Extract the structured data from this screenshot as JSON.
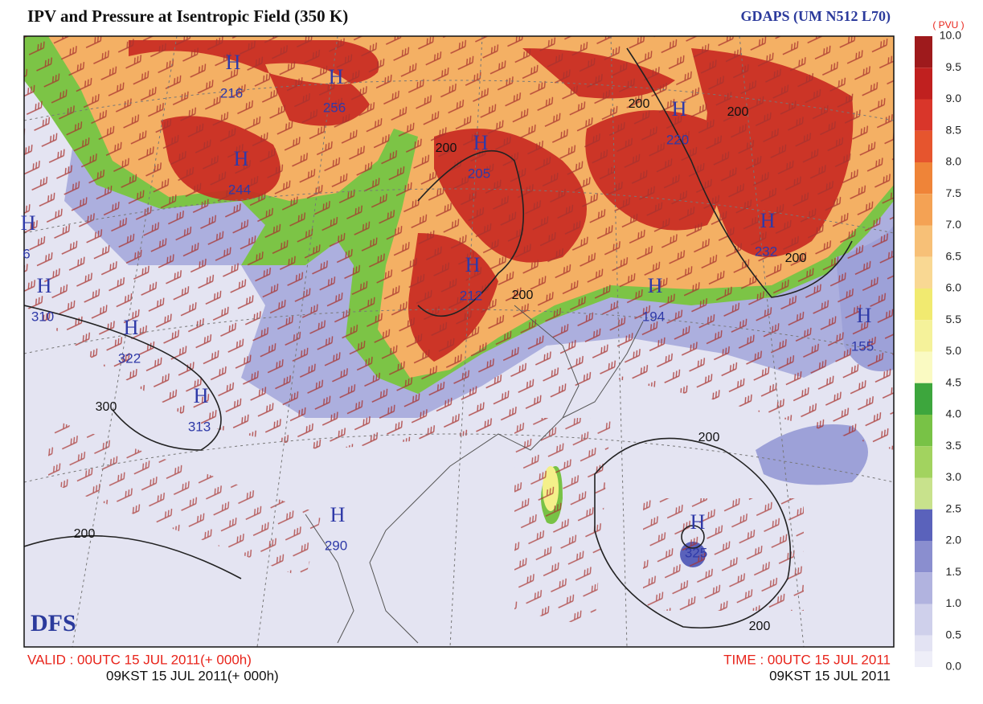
{
  "header": {
    "title": "IPV and Pressure at Isentropic Field (350 K)",
    "model": "GDAPS (UM N512 L70)"
  },
  "colorbar": {
    "unit": "( PVU )",
    "levels": [
      {
        "label": "10.0",
        "color": "#9e1a1c"
      },
      {
        "label": "9.5",
        "color": "#c0201f"
      },
      {
        "label": "9.0",
        "color": "#d9362a"
      },
      {
        "label": "8.5",
        "color": "#e6552e"
      },
      {
        "label": "8.0",
        "color": "#ef8438"
      },
      {
        "label": "7.5",
        "color": "#f4a254"
      },
      {
        "label": "7.0",
        "color": "#f7c077"
      },
      {
        "label": "6.5",
        "color": "#f9d893"
      },
      {
        "label": "6.0",
        "color": "#f1ea70"
      },
      {
        "label": "5.5",
        "color": "#f5f29a"
      },
      {
        "label": "5.0",
        "color": "#fafac2"
      },
      {
        "label": "4.5",
        "color": "#3da63d"
      },
      {
        "label": "4.0",
        "color": "#78c246"
      },
      {
        "label": "3.5",
        "color": "#a2d35f"
      },
      {
        "label": "3.0",
        "color": "#c8e28c"
      },
      {
        "label": "2.5",
        "color": "#5a62bb"
      },
      {
        "label": "2.0",
        "color": "#8a8ecf"
      },
      {
        "label": "1.5",
        "color": "#b1b3df"
      },
      {
        "label": "1.0",
        "color": "#cfd0eb"
      },
      {
        "label": "0.5",
        "color": "#e3e3f3"
      },
      {
        "label": "0.0",
        "color": null
      }
    ]
  },
  "highs": [
    {
      "label": "H",
      "value": 216
    },
    {
      "label": "H",
      "value": 256
    },
    {
      "label": "H",
      "value": 244
    },
    {
      "label": "H",
      "value": 205
    },
    {
      "label": "H",
      "value": 6
    },
    {
      "label": "H",
      "value": 310
    },
    {
      "label": "H",
      "value": 322
    },
    {
      "label": "H",
      "value": 313
    },
    {
      "label": "H",
      "value": 212
    },
    {
      "label": "H",
      "value": 194
    },
    {
      "label": "H",
      "value": 220
    },
    {
      "label": "H",
      "value": 232
    },
    {
      "label": "H",
      "value": 155
    },
    {
      "label": "H",
      "value": 290
    },
    {
      "label": "H",
      "value": 325
    }
  ],
  "contour_labels": [
    200,
    300,
    200,
    200,
    200,
    200,
    200,
    200,
    200
  ],
  "logo": "DFS",
  "footer": {
    "valid": "VALID : 00UTC 15 JUL 2011(+ 000h)",
    "valid_kst": "09KST 15 JUL 2011(+ 000h)",
    "time": "TIME : 00UTC 15 JUL 2011",
    "time_kst": "09KST 15 JUL 2011"
  }
}
